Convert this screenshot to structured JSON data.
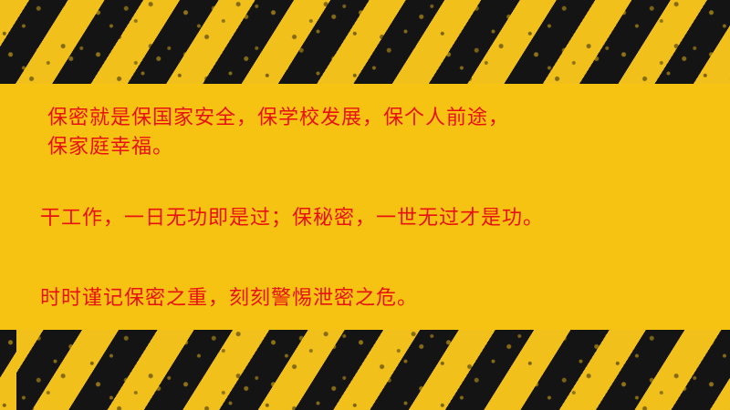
{
  "colors": {
    "background_yellow": "#f2c01a",
    "stripe_black": "#141414",
    "text_red": "#e8110f"
  },
  "slide": {
    "paragraphs": [
      {
        "lines": [
          "保密就是保国家安全，保学校发展，保个人前途，",
          "保家庭幸福。"
        ]
      },
      {
        "lines": [
          "干工作，一日无功即是过；保秘密，一世无过才是功。"
        ]
      },
      {
        "lines": [
          "时时谨记保密之重，刻刻警惕泄密之危。"
        ]
      }
    ]
  }
}
